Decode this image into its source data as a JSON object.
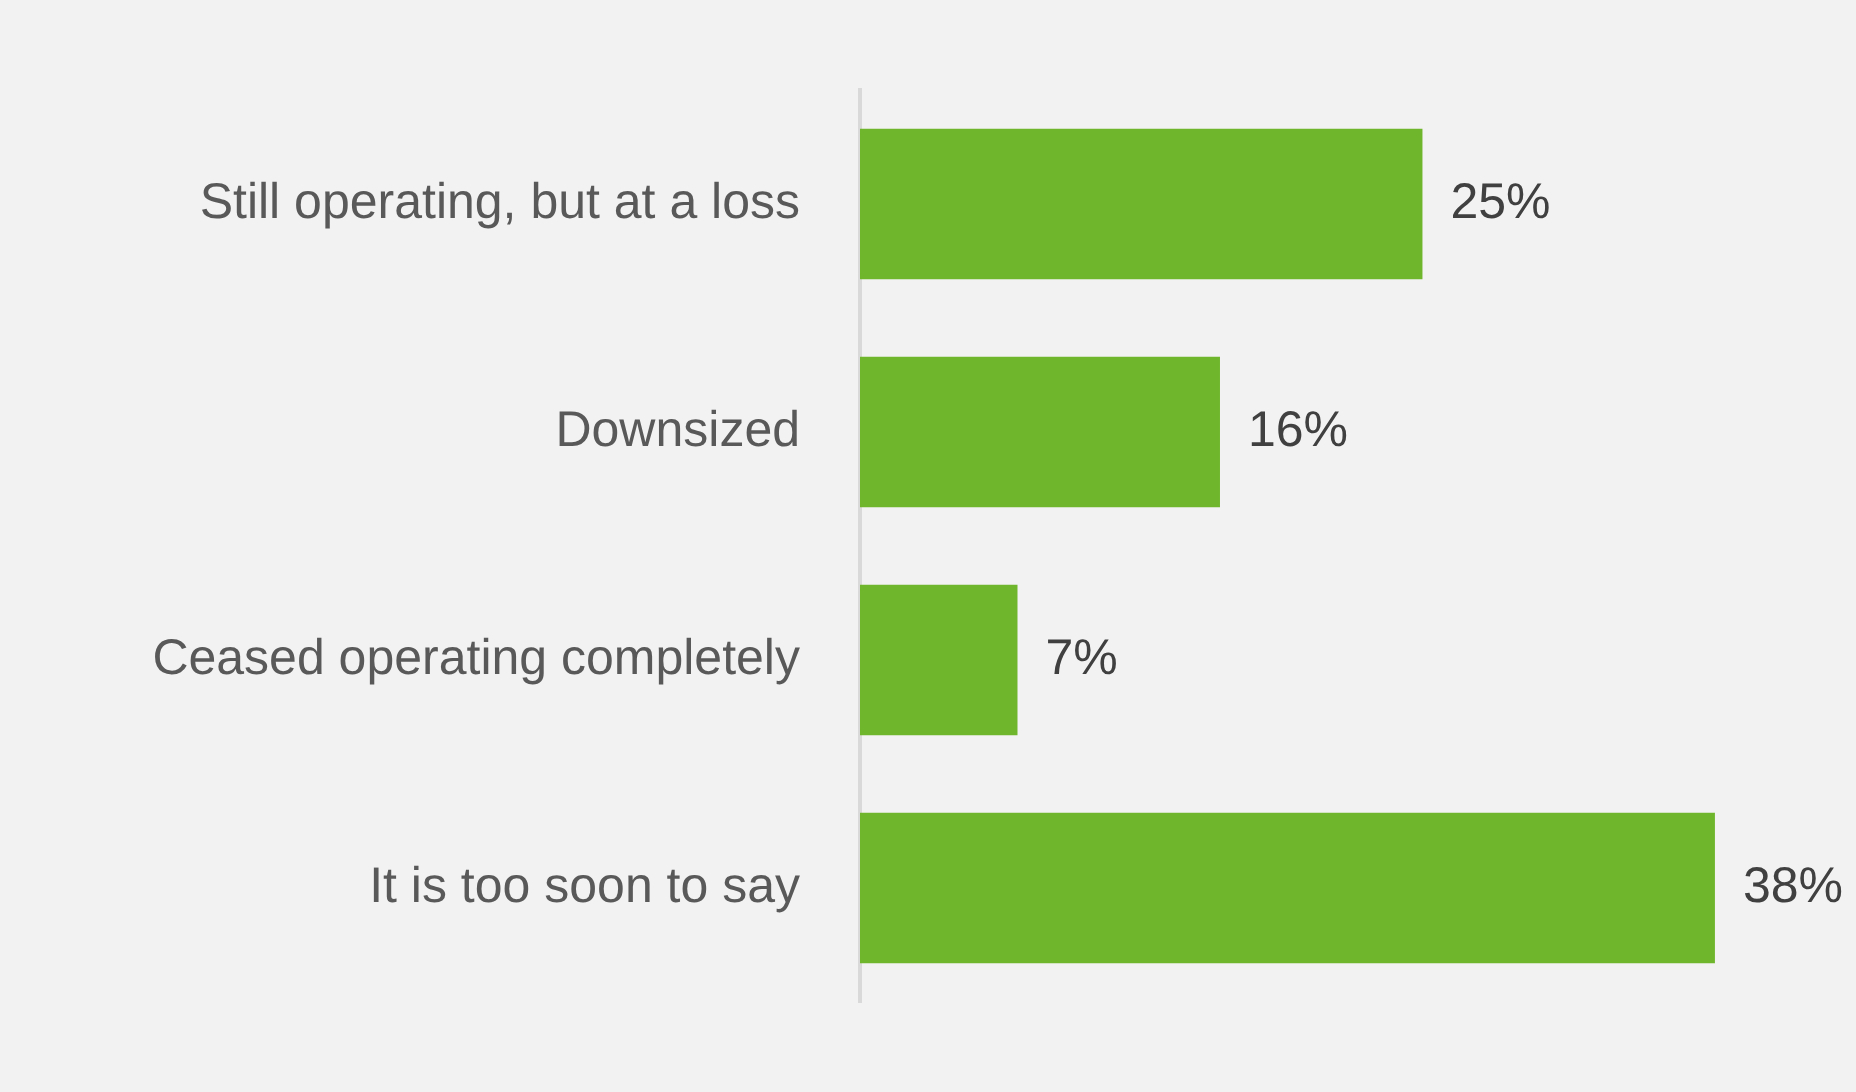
{
  "chart_data": {
    "type": "bar",
    "orientation": "horizontal",
    "categories": [
      "Still operating, but at a loss",
      "Downsized",
      "Ceased operating completely",
      "It is too soon to say"
    ],
    "values": [
      25,
      16,
      7,
      38
    ],
    "color": "#70b62c",
    "value_labels": [
      "25%",
      "16%",
      "7%",
      "38%"
    ],
    "legend": false
  }
}
